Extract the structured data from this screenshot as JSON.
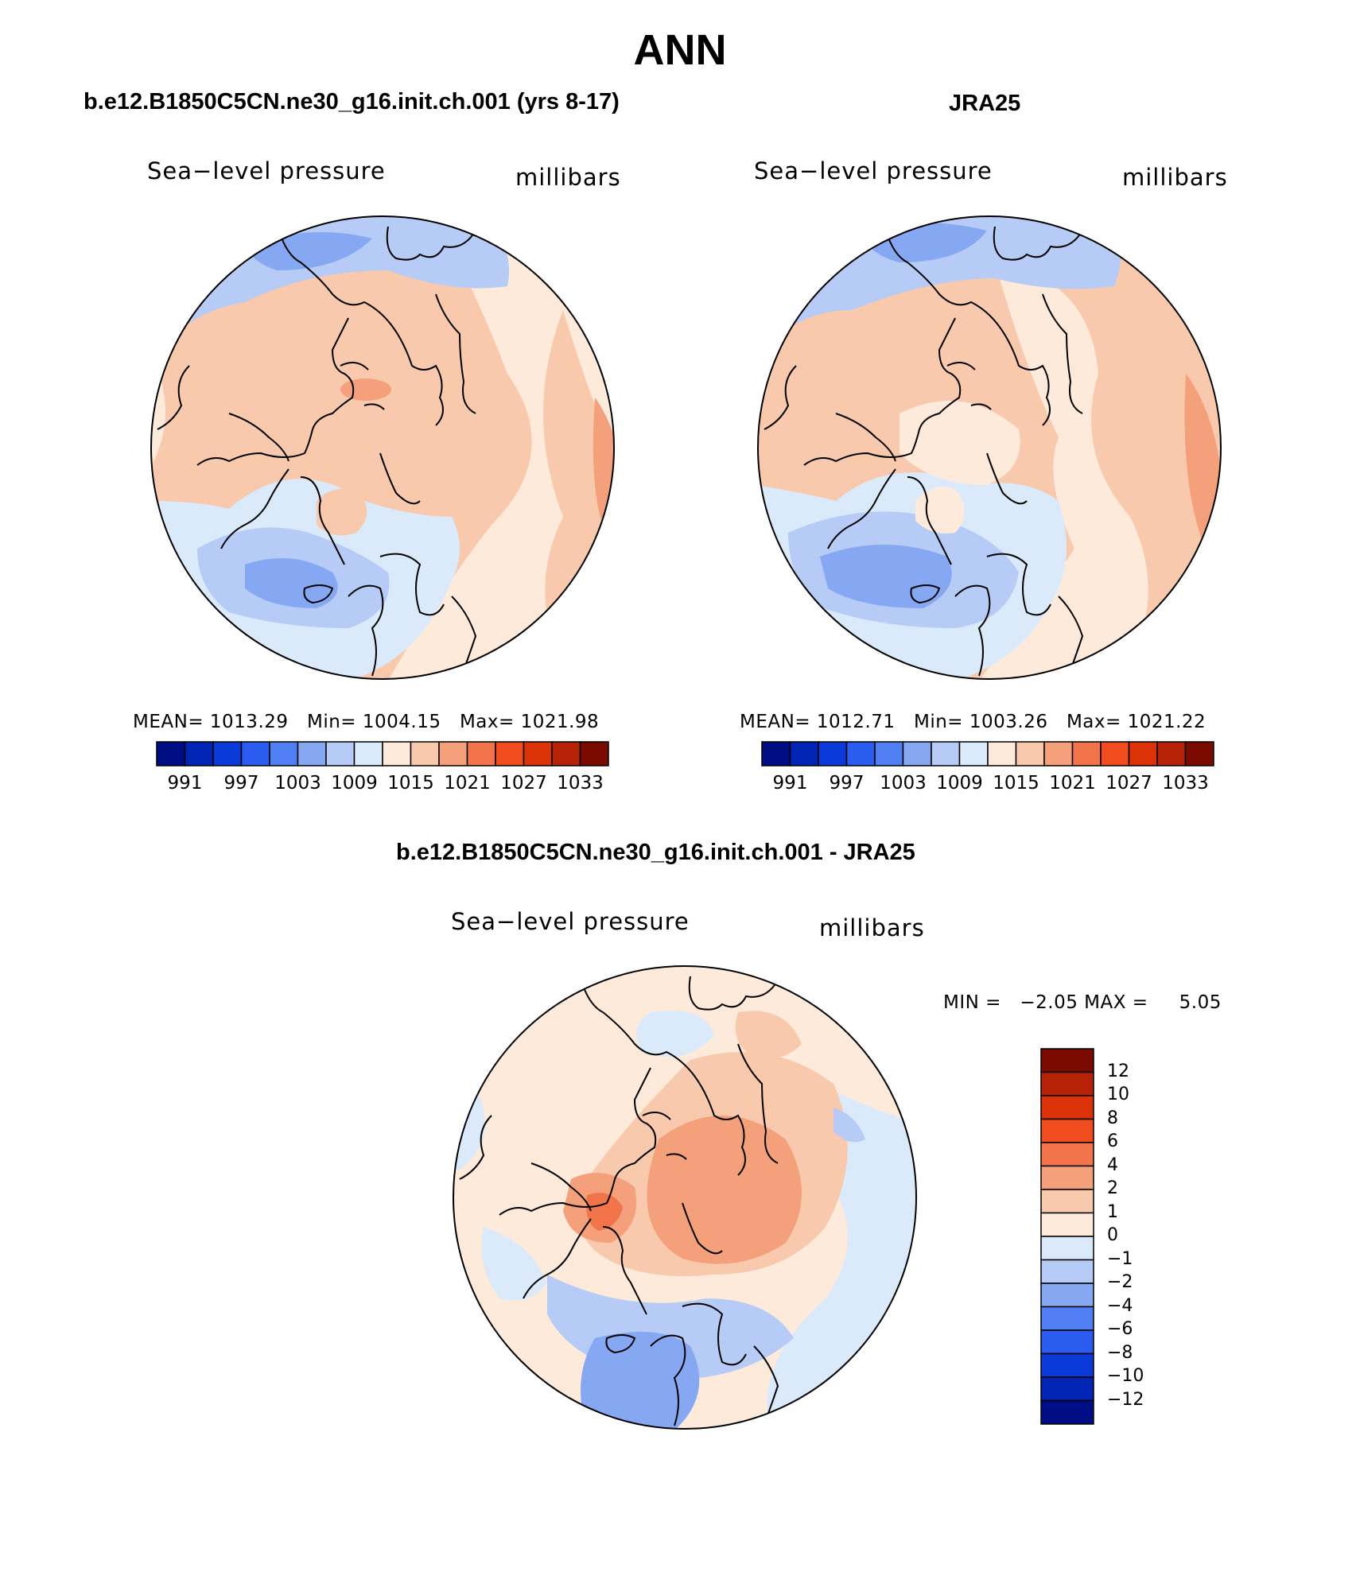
{
  "figure": {
    "season_title": "ANN",
    "variable_label": "Sea−level pressure",
    "unit_label": "millibars"
  },
  "panels": [
    {
      "title": "b.e12.B1850C5CN.ne30_g16.init.ch.001 (yrs 8-17)",
      "stats": {
        "mean_label": "MEAN=",
        "mean": "1013.29",
        "min_label": "Min=",
        "min": "1004.15",
        "max_label": "Max=",
        "max": "1021.98"
      }
    },
    {
      "title": "JRA25",
      "stats": {
        "mean_label": "MEAN=",
        "mean": "1012.71",
        "min_label": "Min=",
        "min": "1003.26",
        "max_label": "Max=",
        "max": "1021.22"
      }
    },
    {
      "title": "b.e12.B1850C5CN.ne30_g16.init.ch.001 - JRA25",
      "stats": {
        "min_label": "MIN =",
        "min": "−2.05",
        "max_label": "MAX =",
        "max": "5.05"
      }
    }
  ],
  "colorbar_main": {
    "colors": [
      "#000e86",
      "#0024b4",
      "#0a3ad8",
      "#2a5cf0",
      "#4f7ff2",
      "#86a8f2",
      "#b6cbf5",
      "#daeafb",
      "#fdeadb",
      "#f9c9ad",
      "#f3a07b",
      "#f2744a",
      "#f04c1d",
      "#dc3207",
      "#b52205",
      "#7b0a00"
    ],
    "tick_labels": [
      "991",
      "997",
      "1003",
      "1009",
      "1015",
      "1021",
      "1027",
      "1033"
    ]
  },
  "colorbar_diff": {
    "colors_top_to_bottom": [
      "#7b0a00",
      "#b52205",
      "#dc3207",
      "#f04c1d",
      "#f2744a",
      "#f3a07b",
      "#f9c9ad",
      "#fdeadb",
      "#daeafb",
      "#b6cbf5",
      "#86a8f2",
      "#4f7ff2",
      "#2a5cf0",
      "#0a3ad8",
      "#0024b4",
      "#000e86"
    ],
    "tick_labels": [
      "12",
      "10",
      "8",
      "6",
      "4",
      "2",
      "1",
      "0",
      "−1",
      "−2",
      "−4",
      "−6",
      "−8",
      "−10",
      "−12"
    ]
  }
}
